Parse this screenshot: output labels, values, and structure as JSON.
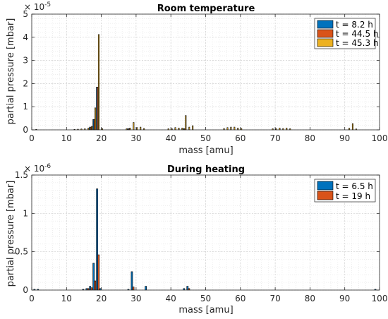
{
  "chart_data": [
    {
      "type": "bar",
      "title": "Room temperature",
      "xlabel": "mass [amu]",
      "ylabel": "partial pressure [mbar]",
      "y_exponent_base": "× 10",
      "y_exponent": "-5",
      "xlim": [
        0,
        100
      ],
      "ylim": [
        0,
        5
      ],
      "xticks": [
        "0",
        "10",
        "20",
        "30",
        "40",
        "50",
        "60",
        "70",
        "80",
        "90",
        "100"
      ],
      "yticks": [
        "0",
        "1",
        "2",
        "3",
        "4",
        "5"
      ],
      "grid": true,
      "legend_position": "top-right",
      "series": [
        {
          "name": "t = 8.2 h",
          "color": "#0072BD",
          "x": [
            17,
            18,
            19,
            28,
            44
          ],
          "values": [
            0.12,
            0.45,
            1.85,
            0.05,
            0.05
          ]
        },
        {
          "name": "t = 44.5 h",
          "color": "#D95319",
          "x": [
            17,
            18,
            19,
            28,
            44
          ],
          "values": [
            0.12,
            0.45,
            1.85,
            0.05,
            0.05
          ]
        },
        {
          "name": "t = 45.3 h",
          "color": "#EDB120",
          "x": [
            1,
            12,
            13,
            14,
            15,
            16,
            17,
            18,
            19,
            20,
            27,
            28,
            29,
            30,
            31,
            32,
            39,
            40,
            41,
            42,
            43,
            44,
            45,
            46,
            55,
            56,
            57,
            58,
            59,
            60,
            69,
            70,
            71,
            72,
            73,
            74,
            91,
            92,
            93
          ],
          "values": [
            0.02,
            0.02,
            0.03,
            0.04,
            0.05,
            0.08,
            0.15,
            0.95,
            4.12,
            0.05,
            0.05,
            0.08,
            0.32,
            0.1,
            0.12,
            0.06,
            0.05,
            0.05,
            0.1,
            0.08,
            0.08,
            0.62,
            0.12,
            0.18,
            0.06,
            0.1,
            0.12,
            0.12,
            0.08,
            0.06,
            0.05,
            0.05,
            0.08,
            0.06,
            0.08,
            0.05,
            0.07,
            0.27,
            0.04
          ]
        }
      ]
    },
    {
      "type": "bar",
      "title": "During heating",
      "xlabel": "mass [amu]",
      "ylabel": "partial pressure [mbar]",
      "y_exponent_base": "× 10",
      "y_exponent": "-6",
      "xlim": [
        0,
        100
      ],
      "ylim": [
        0,
        1.5
      ],
      "xticks": [
        "0",
        "10",
        "20",
        "30",
        "40",
        "50",
        "60",
        "70",
        "80",
        "90",
        "100"
      ],
      "yticks": [
        "0",
        "0.5",
        "1",
        "1.5"
      ],
      "grid": true,
      "legend_position": "top-right",
      "series": [
        {
          "name": "t = 6.5 h",
          "color": "#0072BD",
          "x": [
            1,
            2,
            15,
            16,
            17,
            18,
            19,
            20,
            28,
            29,
            33,
            44,
            45,
            99
          ],
          "values": [
            0.01,
            0.01,
            0.01,
            0.02,
            0.05,
            0.35,
            1.32,
            0.02,
            0.01,
            0.24,
            0.05,
            0.02,
            0.05,
            0.01
          ]
        },
        {
          "name": "t = 19 h",
          "color": "#D95319",
          "x": [
            16,
            17,
            18,
            19,
            29,
            45
          ],
          "values": [
            0.02,
            0.03,
            0.12,
            0.46,
            0.04,
            0.02
          ]
        }
      ]
    }
  ]
}
